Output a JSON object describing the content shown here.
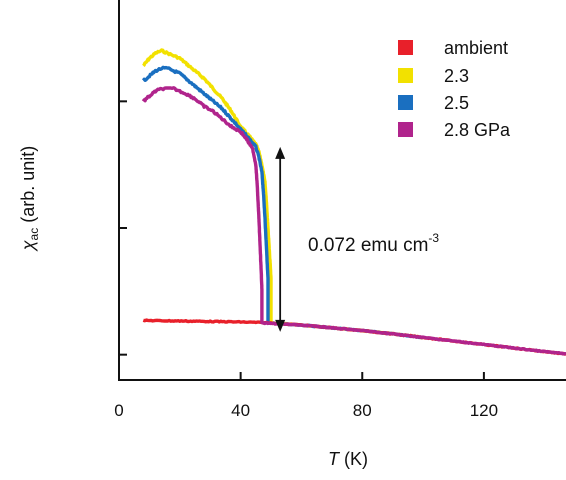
{
  "chart_data": {
    "type": "line",
    "xlabel": {
      "var": "T",
      "unit": " (K)"
    },
    "ylabel": {
      "var": "χ",
      "sub": "ac",
      "rest": " (arb. unit)"
    },
    "xlim": [
      0,
      147
    ],
    "ylim": [
      0,
      1.5
    ],
    "xticks": [
      0,
      40,
      80,
      120
    ],
    "xtick_labels": [
      "0",
      "40",
      "80",
      "120"
    ],
    "yticks": [
      0.1,
      0.6,
      1.1
    ],
    "ytick_labels": [],
    "grid": false,
    "legend_position": "top-right",
    "annotation": {
      "text": "0.072 emu cm",
      "sup": "-3",
      "arrow_x": 53,
      "arrow_y": [
        0.19,
        0.92
      ]
    },
    "series": [
      {
        "name": "ambient",
        "color": "#e8202a",
        "x": [
          8,
          20,
          30,
          40,
          46,
          50,
          60,
          70,
          80,
          90,
          100,
          110,
          120,
          130,
          140,
          147
        ],
        "y": [
          0.235,
          0.233,
          0.231,
          0.229,
          0.227,
          0.225,
          0.217,
          0.206,
          0.195,
          0.182,
          0.168,
          0.154,
          0.14,
          0.126,
          0.112,
          0.103
        ]
      },
      {
        "name": "2.3",
        "color": "#f2e100",
        "x": [
          8,
          10,
          12,
          14,
          16,
          18,
          20,
          22,
          25,
          28,
          31,
          34,
          37,
          40,
          43,
          45,
          46,
          47,
          48,
          48.5,
          49,
          49.5,
          50,
          50,
          60,
          70,
          80,
          90,
          100
        ],
        "y": [
          1.24,
          1.27,
          1.29,
          1.3,
          1.29,
          1.28,
          1.27,
          1.25,
          1.22,
          1.19,
          1.15,
          1.11,
          1.06,
          1.0,
          0.96,
          0.93,
          0.9,
          0.85,
          0.78,
          0.7,
          0.6,
          0.5,
          0.4,
          0.225,
          0.217,
          0.206,
          0.195,
          0.182,
          0.168
        ]
      },
      {
        "name": "2.5",
        "color": "#1a6fc0",
        "x": [
          8,
          10,
          12,
          14,
          16,
          18,
          20,
          22,
          25,
          28,
          31,
          34,
          37,
          40,
          43,
          45,
          46,
          47,
          47.5,
          48,
          48.5,
          49,
          49,
          60,
          70,
          80,
          90,
          100
        ],
        "y": [
          1.18,
          1.2,
          1.22,
          1.23,
          1.23,
          1.22,
          1.21,
          1.19,
          1.16,
          1.13,
          1.1,
          1.07,
          1.03,
          0.99,
          0.95,
          0.92,
          0.88,
          0.82,
          0.74,
          0.64,
          0.52,
          0.4,
          0.225,
          0.217,
          0.206,
          0.195,
          0.182,
          0.168
        ]
      },
      {
        "name": "2.8 GPa",
        "color": "#b0248c",
        "x": [
          8,
          10,
          12,
          14,
          16,
          18,
          20,
          22,
          25,
          28,
          31,
          34,
          37,
          40,
          42,
          44,
          45,
          45.5,
          46,
          46.5,
          47,
          47,
          60,
          70,
          80,
          90,
          100,
          110,
          120,
          130,
          140,
          147
        ],
        "y": [
          1.1,
          1.12,
          1.14,
          1.15,
          1.15,
          1.15,
          1.14,
          1.13,
          1.11,
          1.08,
          1.06,
          1.03,
          1.0,
          0.98,
          0.95,
          0.91,
          0.85,
          0.76,
          0.64,
          0.5,
          0.36,
          0.225,
          0.217,
          0.206,
          0.195,
          0.182,
          0.168,
          0.154,
          0.14,
          0.126,
          0.112,
          0.103
        ]
      }
    ]
  }
}
